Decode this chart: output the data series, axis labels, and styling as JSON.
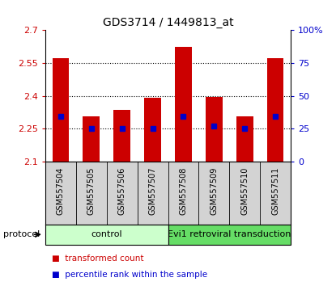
{
  "title": "GDS3714 / 1449813_at",
  "samples": [
    "GSM557504",
    "GSM557505",
    "GSM557506",
    "GSM557507",
    "GSM557508",
    "GSM557509",
    "GSM557510",
    "GSM557511"
  ],
  "bar_values": [
    2.57,
    2.305,
    2.335,
    2.39,
    2.625,
    2.395,
    2.305,
    2.57
  ],
  "bar_base": 2.1,
  "percentile_values": [
    2.305,
    2.252,
    2.252,
    2.252,
    2.305,
    2.263,
    2.25,
    2.305
  ],
  "ylim": [
    2.1,
    2.7
  ],
  "yticks_left": [
    2.1,
    2.25,
    2.4,
    2.55,
    2.7
  ],
  "ytick_labels_left": [
    "2.1",
    "2.25",
    "2.4",
    "2.55",
    "2.7"
  ],
  "yticks_right_pos": [
    2.1,
    2.25,
    2.4,
    2.55,
    2.7
  ],
  "ytick_labels_right": [
    "0",
    "25",
    "50",
    "75",
    "100%"
  ],
  "gridlines": [
    2.25,
    2.4,
    2.55
  ],
  "bar_color": "#cc0000",
  "percentile_color": "#0000cc",
  "bar_width": 0.55,
  "group_control_color": "#ccffcc",
  "group_evi_color": "#66dd66",
  "group_control_label": "control",
  "group_evi_label": "Evi1 retroviral transduction",
  "group_n_control": 4,
  "group_n_evi": 4,
  "protocol_label": "protocol",
  "legend_label_count": "transformed count",
  "legend_label_percentile": "percentile rank within the sample",
  "cell_bg_color": "#d3d3d3",
  "tick_color_left": "#cc0000",
  "tick_color_right": "#0000cc"
}
